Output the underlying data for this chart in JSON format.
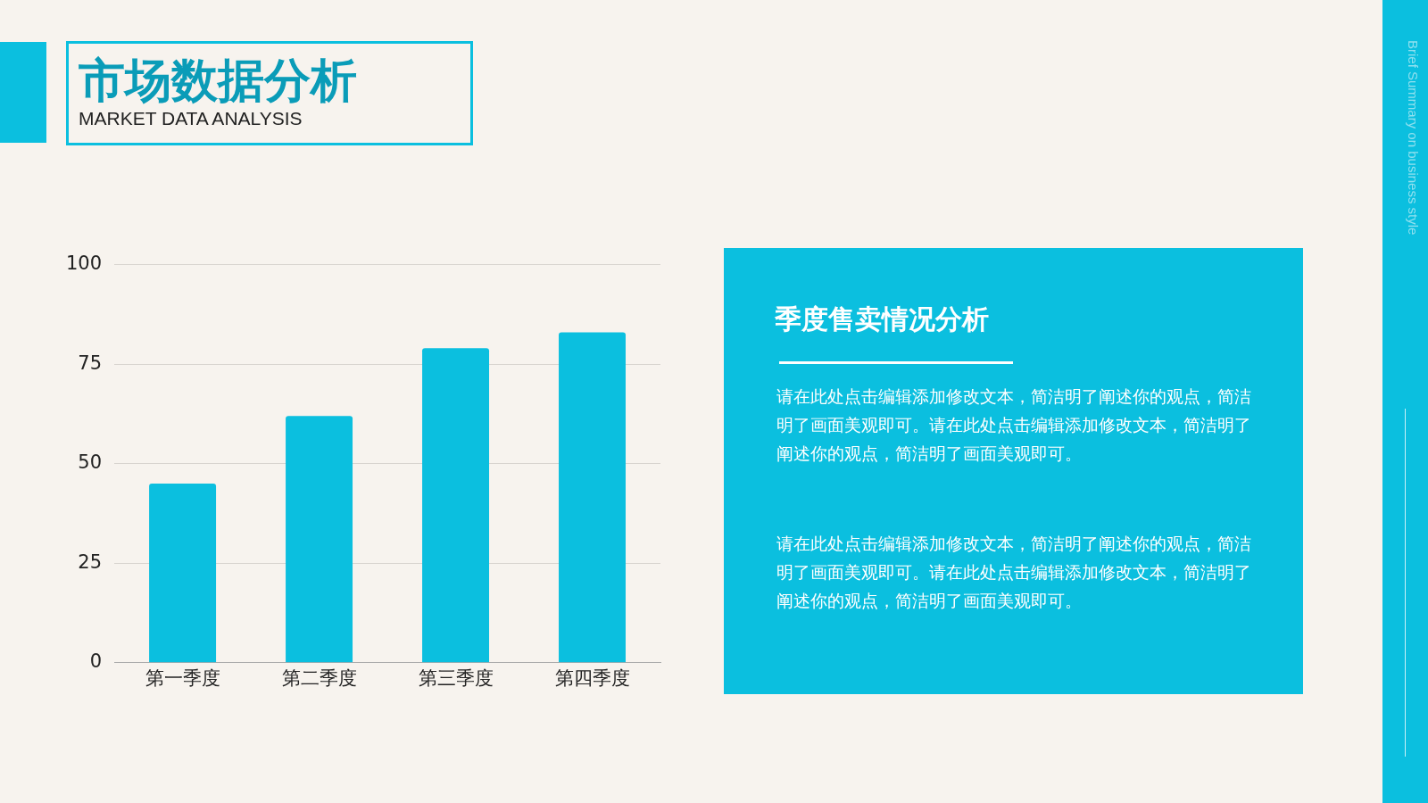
{
  "chart_data": [
    {
      "type": "bar",
      "title": "市场数据分析",
      "subtitle": "MARKET DATA ANALYSIS",
      "categories": [
        "第一季度",
        "第二季度",
        "第三季度",
        "第四季度"
      ],
      "values": [
        45,
        62,
        79,
        83
      ],
      "color": "#0bbfdf",
      "ylim": [
        0,
        100
      ],
      "yticks": [
        0,
        25,
        50,
        75,
        100
      ],
      "grid": "y",
      "legend": false,
      "annotations": [
        "Brief Summary on business style"
      ]
    },
    {
      "type": "other",
      "title": "季度售卖情况分析",
      "annotations": [
        "请在此处点击编辑添加修改文本，简洁明了阐述你的观点，简洁明了画面美观即可。请在此处点击编辑添加修改文本，简洁明了阐述你的观点，简洁明了画面美观即可。",
        "请在此处点击编辑添加修改文本，简洁明了阐述你的观点，简洁明了画面美观即可。请在此处点击编辑添加修改文本，简洁明了阐述你的观点，简洁明了画面美观即可。"
      ]
    }
  ]
}
